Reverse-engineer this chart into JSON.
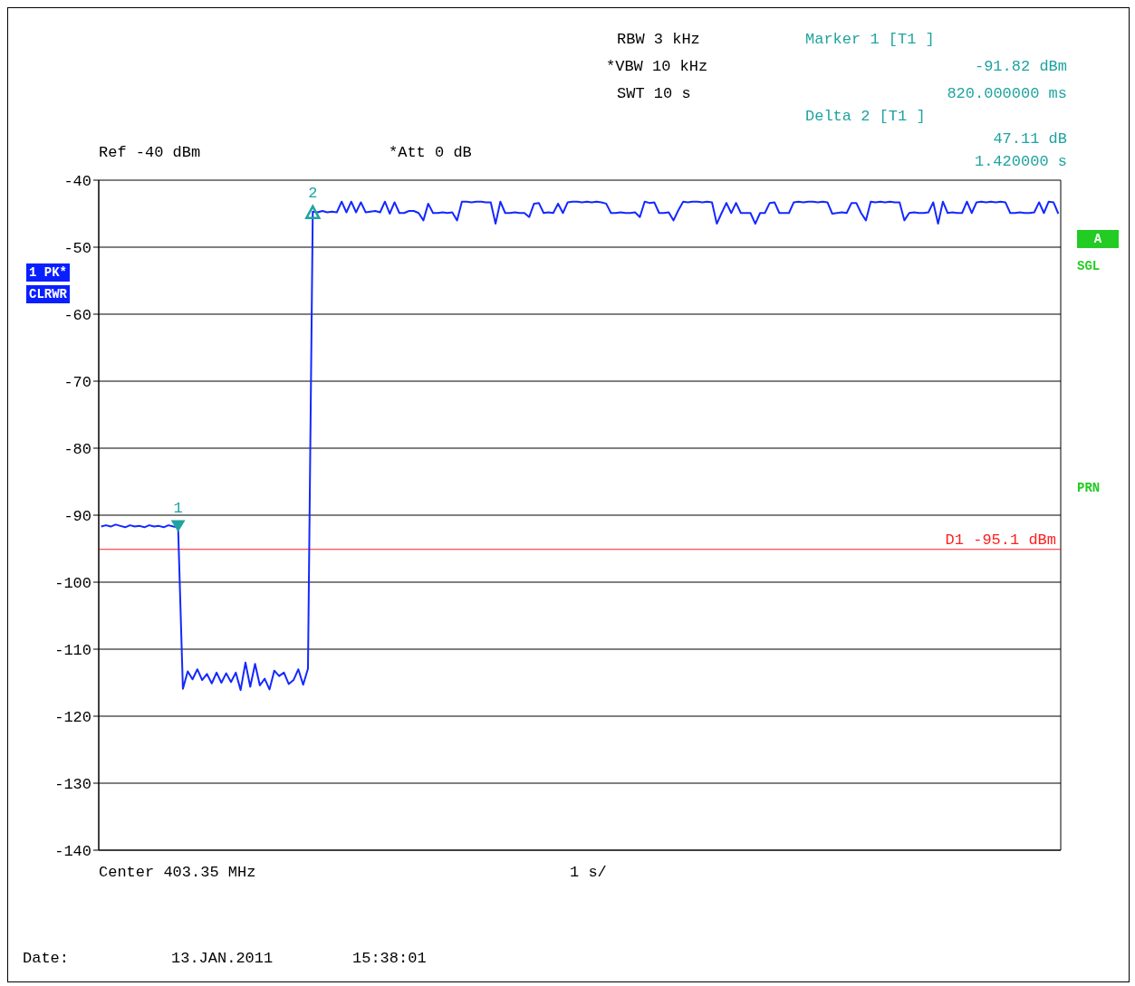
{
  "chart_data": {
    "type": "line",
    "categories": [
      null,
      null,
      null,
      null,
      null,
      null,
      null,
      null,
      null,
      null,
      null,
      null,
      null,
      null,
      null,
      null,
      null,
      null,
      null,
      null,
      null,
      null,
      null,
      null,
      null,
      null,
      null,
      null,
      null,
      null,
      null,
      null,
      null,
      null,
      null,
      null,
      null,
      null,
      null,
      null,
      null,
      null,
      null,
      null,
      null,
      null,
      null,
      null,
      null,
      null,
      null,
      null,
      null,
      null,
      null,
      null,
      null,
      null,
      null,
      null,
      null,
      null,
      null,
      null,
      null,
      null,
      null,
      null,
      null,
      null,
      null,
      null,
      null,
      null,
      null,
      null,
      null,
      null,
      null,
      null,
      null,
      null,
      null,
      null,
      null,
      null,
      null,
      null,
      null,
      null,
      null,
      null,
      null,
      null,
      null,
      null,
      null,
      null,
      null,
      null,
      null,
      null,
      null,
      null,
      null,
      null,
      null,
      null,
      null,
      null,
      null,
      null,
      null,
      null,
      null,
      null,
      null,
      null,
      null,
      null,
      null,
      null,
      null,
      null,
      null,
      null,
      null,
      null,
      null,
      null,
      null,
      null,
      null,
      null,
      null,
      null,
      null,
      null,
      null,
      null,
      null,
      null,
      null,
      null,
      null,
      null,
      null,
      null,
      null,
      null,
      null,
      null,
      null,
      null,
      null,
      null,
      null,
      null,
      null,
      null,
      null,
      null,
      null,
      null,
      null,
      null,
      null,
      null,
      null,
      null,
      null,
      null,
      null,
      null,
      null,
      null,
      null,
      null,
      null,
      null,
      null,
      null,
      null,
      null,
      null,
      null,
      null,
      null,
      null,
      null,
      null,
      null,
      null,
      null,
      null,
      null,
      null,
      null,
      null,
      null
    ],
    "series": [
      {
        "color": "#1428ff",
        "values": [
          -91.7,
          -91.5,
          -91.7,
          -91.4,
          -91.6,
          -91.8,
          -91.5,
          -91.7,
          -91.6,
          -91.8,
          -91.5,
          -91.7,
          -91.6,
          -91.8,
          -91.5,
          -91.7,
          -91.8,
          -115.9,
          -113.3,
          -114.5,
          -113.0,
          -114.6,
          -113.7,
          -115.1,
          -113.5,
          -115.0,
          -113.6,
          -114.9,
          -113.5,
          -116.1,
          -112.0,
          -115.6,
          -112.2,
          -115.4,
          -114.4,
          -116.0,
          -113.2,
          -114.0,
          -113.5,
          -115.2,
          -114.6,
          -113.0,
          -115.3,
          -112.9,
          -44.7,
          -44.8,
          -44.6,
          -44.8,
          -44.7,
          -44.8,
          -43.2,
          -44.8,
          -43.2,
          -44.8,
          -43.3,
          -44.8,
          -44.7,
          -44.6,
          -44.8,
          -43.2,
          -45.0,
          -43.3,
          -44.9,
          -44.9,
          -44.6,
          -44.6,
          -44.9,
          -46.0,
          -43.5,
          -44.9,
          -44.9,
          -44.8,
          -44.9,
          -44.8,
          -46.0,
          -43.2,
          -43.2,
          -43.3,
          -43.2,
          -43.2,
          -43.3,
          -43.3,
          -46.5,
          -43.2,
          -44.9,
          -44.9,
          -44.8,
          -44.9,
          -44.9,
          -45.5,
          -43.5,
          -43.4,
          -44.9,
          -44.8,
          -44.9,
          -43.5,
          -44.9,
          -43.3,
          -43.2,
          -43.2,
          -43.3,
          -43.2,
          -43.3,
          -43.2,
          -43.3,
          -43.5,
          -44.9,
          -44.9,
          -44.8,
          -44.9,
          -44.9,
          -44.8,
          -45.5,
          -43.2,
          -43.4,
          -43.3,
          -44.9,
          -44.9,
          -44.8,
          -46.0,
          -44.5,
          -43.2,
          -43.3,
          -43.2,
          -43.2,
          -43.3,
          -43.2,
          -43.3,
          -46.5,
          -44.9,
          -43.4,
          -44.9,
          -43.4,
          -44.9,
          -44.9,
          -44.9,
          -46.5,
          -44.9,
          -44.9,
          -43.4,
          -43.3,
          -44.9,
          -44.9,
          -44.9,
          -43.3,
          -43.2,
          -43.3,
          -43.2,
          -43.2,
          -43.3,
          -43.2,
          -43.3,
          -45.0,
          -44.9,
          -44.8,
          -44.9,
          -43.4,
          -43.4,
          -44.9,
          -46.0,
          -43.2,
          -43.3,
          -43.2,
          -43.3,
          -43.2,
          -43.3,
          -43.3,
          -46.0,
          -44.9,
          -44.8,
          -44.9,
          -44.9,
          -44.8,
          -43.3,
          -46.5,
          -43.2,
          -44.9,
          -44.8,
          -44.9,
          -44.9,
          -43.2,
          -44.9,
          -43.3,
          -43.2,
          -43.3,
          -43.2,
          -43.3,
          -43.2,
          -43.3,
          -44.9,
          -44.9,
          -44.8,
          -44.9,
          -44.9,
          -44.8,
          -43.3,
          -44.9,
          -43.2,
          -43.3,
          -45.0
        ]
      }
    ],
    "ylim": [
      -140,
      -40
    ],
    "yticks": [
      -40,
      -50,
      -60,
      -70,
      -80,
      -90,
      -100,
      -110,
      -120,
      -130,
      -140
    ],
    "tick_labels": "y",
    "grid": true,
    "marker": "none",
    "line_style": "solid",
    "ref_lines": [
      {
        "axis": "y",
        "value": -95.1,
        "label": "D1 -95.1 dBm",
        "color": "#ff2020"
      }
    ],
    "annotations": [
      "Ref -40 dBm",
      "*Att 0 dB",
      "RBW 3 kHz",
      "*VBW 10 kHz",
      "SWT 10 s",
      "Marker 1 [T1 ]",
      "-91.82 dBm",
      "820.000000 ms",
      "Delta 2 [T1 ]",
      "47.11 dB",
      "1.420000 s",
      "1 PK*",
      "CLRWR",
      "A",
      "SGL",
      "PRN",
      "Center 403.35 MHz",
      "1 s/",
      "Date:",
      "13.JAN.2011",
      "15:38:01",
      {
        "text": "1",
        "y": -91.82
      },
      {
        "text": "2",
        "y": -44.71
      }
    ]
  }
}
